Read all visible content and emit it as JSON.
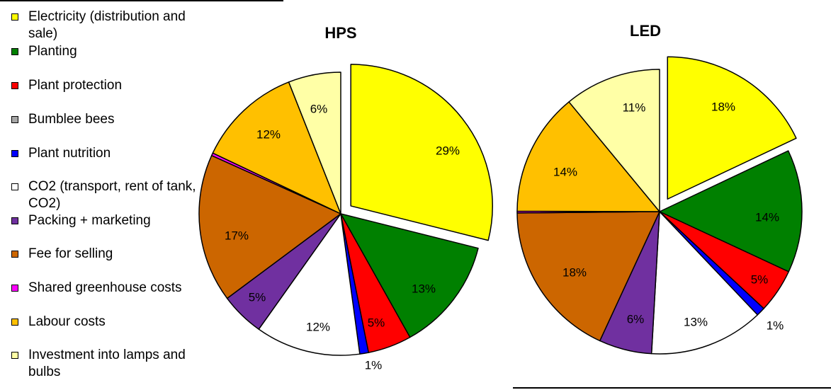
{
  "chart_data": [
    {
      "type": "pie",
      "title": "HPS",
      "categories": [
        "Electricity (distribution and sale)",
        "Planting",
        "Plant protection",
        "Bumblee bees",
        "Plant nutrition",
        "CO2 (transport, rent of tank, CO2)",
        "Packing + marketing",
        "Fee for selling",
        "Shared greenhouse costs",
        "Labour costs",
        "Investment into lamps and bulbs"
      ],
      "values": [
        29,
        13,
        5,
        0,
        1,
        12,
        5,
        17,
        0.3,
        12,
        6
      ],
      "labels": [
        "29%",
        "13%",
        "5%",
        "",
        "1%",
        "12%",
        "5%",
        "17%",
        "",
        "12%",
        "6%"
      ],
      "exploded": [
        "Electricity (distribution and sale)"
      ]
    },
    {
      "type": "pie",
      "title": "LED",
      "categories": [
        "Electricity (distribution and sale)",
        "Planting",
        "Plant protection",
        "Bumblee bees",
        "Plant nutrition",
        "CO2 (transport, rent of tank, CO2)",
        "Packing + marketing",
        "Fee for selling",
        "Shared greenhouse costs",
        "Labour costs",
        "Investment into lamps and bulbs"
      ],
      "values": [
        18,
        14,
        5,
        0,
        1,
        13,
        6,
        18,
        0.2,
        14,
        11
      ],
      "labels": [
        "18%",
        "14%",
        "5%",
        "",
        "1%",
        "13%",
        "6%",
        "18%",
        "",
        "14%",
        "11%"
      ],
      "exploded": [
        "Electricity (distribution and sale)"
      ]
    }
  ],
  "legend": {
    "items": [
      {
        "label": "Electricity (distribution and sale)",
        "color": "#ffff00"
      },
      {
        "label": "Planting",
        "color": "#008000"
      },
      {
        "label": "Plant protection",
        "color": "#ff0000"
      },
      {
        "label": "Bumblee bees",
        "color": "#a6a6a6"
      },
      {
        "label": "Plant nutrition",
        "color": "#0000ff"
      },
      {
        "label": "CO2 (transport, rent of tank, CO2)",
        "color": "#ffffff"
      },
      {
        "label": "Packing + marketing",
        "color": "#7030a0"
      },
      {
        "label": "Fee for selling",
        "color": "#cc6600"
      },
      {
        "label": "Shared greenhouse costs",
        "color": "#ff00ff"
      },
      {
        "label": "Labour costs",
        "color": "#ffc000"
      },
      {
        "label": "Investment into lamps and bulbs",
        "color": "#ffffa6"
      }
    ]
  }
}
